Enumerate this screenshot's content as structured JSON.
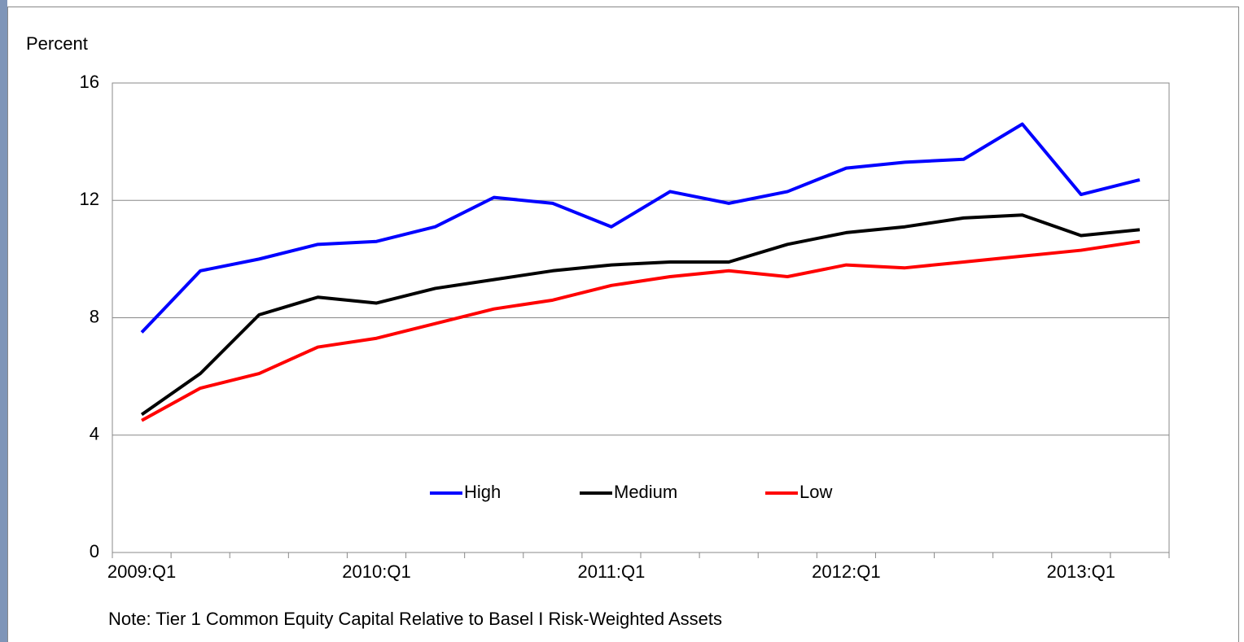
{
  "chart_data": {
    "type": "line",
    "y_label": "Percent",
    "note": "Note:  Tier 1 Common Equity Capital Relative to Basel I Risk-Weighted Assets",
    "categories": [
      "2009:Q1",
      null,
      null,
      null,
      "2010:Q1",
      null,
      null,
      null,
      "2011:Q1",
      null,
      null,
      null,
      "2012:Q1",
      null,
      null,
      null,
      "2013:Q1",
      null
    ],
    "series": [
      {
        "name": "High",
        "color": "#0000ff",
        "values": [
          7.5,
          9.6,
          10.0,
          10.5,
          10.6,
          11.1,
          12.1,
          11.9,
          11.1,
          12.3,
          11.9,
          12.3,
          13.1,
          13.3,
          13.4,
          14.6,
          12.2,
          12.7
        ]
      },
      {
        "name": "Medium",
        "color": "#000000",
        "values": [
          4.7,
          6.1,
          8.1,
          8.7,
          8.5,
          9.0,
          9.3,
          9.6,
          9.8,
          9.9,
          9.9,
          10.5,
          10.9,
          11.1,
          11.4,
          11.5,
          10.8,
          11.0
        ]
      },
      {
        "name": "Low",
        "color": "#ff0000",
        "values": [
          4.5,
          5.6,
          6.1,
          7.0,
          7.3,
          7.8,
          8.3,
          8.6,
          9.1,
          9.4,
          9.6,
          9.4,
          9.8,
          9.7,
          9.9,
          10.1,
          10.3,
          10.6
        ]
      }
    ],
    "ylim": [
      0,
      16
    ],
    "yticks": [
      0,
      4,
      8,
      12,
      16
    ],
    "grid": true,
    "legend": "bottom"
  }
}
